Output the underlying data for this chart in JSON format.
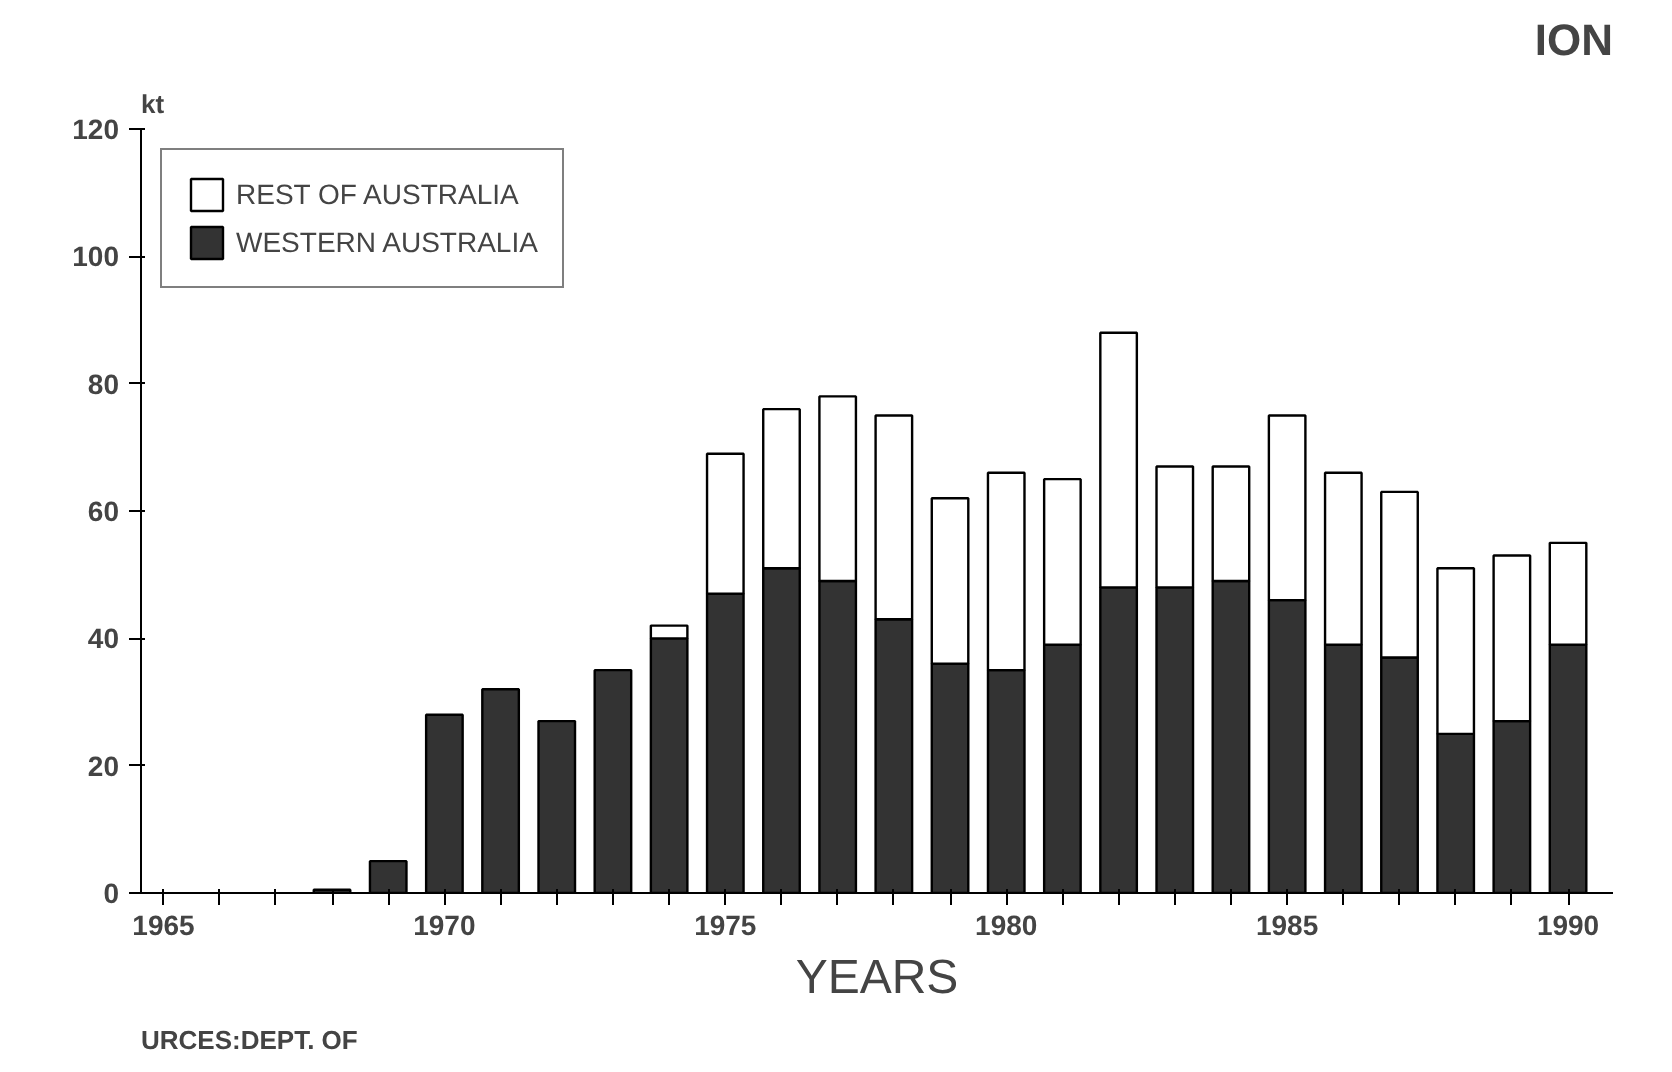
{
  "chart_data": {
    "type": "bar",
    "stacked": true,
    "title": "ION",
    "ylabel": "kt",
    "xlabel": "YEARS",
    "x": [
      1968,
      1969,
      1970,
      1971,
      1972,
      1973,
      1974,
      1975,
      1976,
      1977,
      1978,
      1979,
      1980,
      1981,
      1982,
      1983,
      1984,
      1985,
      1986,
      1987,
      1988,
      1989,
      1990
    ],
    "series": [
      {
        "name": "WESTERN AUSTRALIA",
        "color": "#333333",
        "values": [
          0.5,
          5,
          28,
          32,
          27,
          35,
          40,
          47,
          51,
          49,
          43,
          36,
          35,
          39,
          48,
          48,
          49,
          46,
          39,
          37,
          25,
          27,
          39
        ]
      },
      {
        "name": "REST OF AUSTRALIA",
        "color": "#ffffff",
        "values": [
          null,
          null,
          null,
          null,
          null,
          null,
          2,
          22,
          25,
          29,
          32,
          26,
          31,
          26,
          40,
          19,
          18,
          29,
          27,
          26,
          26,
          26,
          16
        ]
      }
    ],
    "xlim": [
      1964.6,
      1990.8
    ],
    "xticks": [
      {
        "value": 1965,
        "label": "1965"
      },
      {
        "value": 1966,
        "label": null
      },
      {
        "value": 1967,
        "label": null
      },
      {
        "value": 1968,
        "label": null
      },
      {
        "value": 1969,
        "label": null
      },
      {
        "value": 1970,
        "label": "1970"
      },
      {
        "value": 1971,
        "label": null
      },
      {
        "value": 1972,
        "label": null
      },
      {
        "value": 1973,
        "label": null
      },
      {
        "value": 1974,
        "label": null
      },
      {
        "value": 1975,
        "label": "1975"
      },
      {
        "value": 1976,
        "label": null
      },
      {
        "value": 1977,
        "label": null
      },
      {
        "value": 1978,
        "label": null
      },
      {
        "value": 1979,
        "label": null
      },
      {
        "value": 1980,
        "label": "1980"
      },
      {
        "value": 1981,
        "label": null
      },
      {
        "value": 1982,
        "label": null
      },
      {
        "value": 1983,
        "label": null
      },
      {
        "value": 1984,
        "label": null
      },
      {
        "value": 1985,
        "label": "1985"
      },
      {
        "value": 1986,
        "label": null
      },
      {
        "value": 1987,
        "label": null
      },
      {
        "value": 1988,
        "label": null
      },
      {
        "value": 1989,
        "label": null
      },
      {
        "value": 1990,
        "label": "1990"
      }
    ],
    "ylim": [
      0,
      120
    ],
    "yticks": [
      0,
      20,
      40,
      60,
      80,
      100,
      120
    ],
    "grid": false,
    "legend": "top left",
    "annotations": [
      "URCES:DEPT. OF"
    ]
  }
}
